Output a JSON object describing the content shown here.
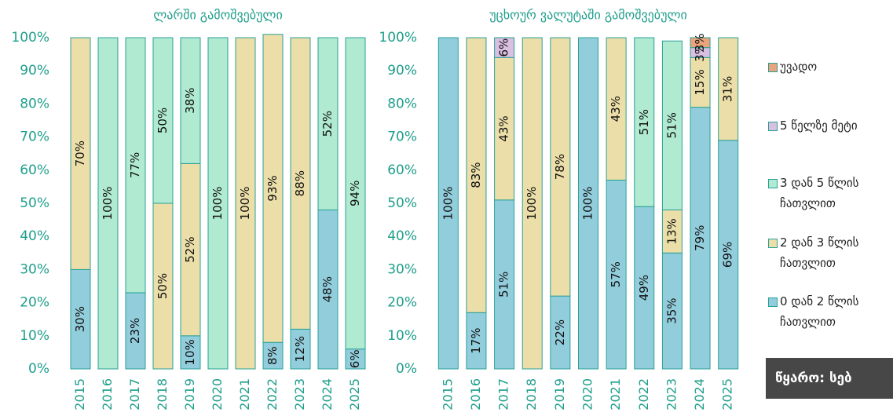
{
  "chart_data": [
    {
      "type": "stacked-bar",
      "title": "ლარში გამოშვებული",
      "categories": [
        "2015",
        "2016",
        "2017",
        "2018",
        "2019",
        "2020",
        "2021",
        "2022",
        "2023",
        "2024",
        "2025"
      ],
      "ylim": [
        0,
        100
      ],
      "yticks": [
        {
          "value": 0,
          "label": "0%"
        },
        {
          "value": 10,
          "label": "10%"
        },
        {
          "value": 20,
          "label": "20%"
        },
        {
          "value": 30,
          "label": "30%"
        },
        {
          "value": 40,
          "label": "40%"
        },
        {
          "value": 50,
          "label": "50%"
        },
        {
          "value": 60,
          "label": "60%"
        },
        {
          "value": 70,
          "label": "70%"
        },
        {
          "value": 80,
          "label": "80%"
        },
        {
          "value": 90,
          "label": "90%"
        },
        {
          "value": 100,
          "label": "100%"
        }
      ],
      "series": [
        {
          "name": "0 დან 2 წლის ჩათვლით",
          "color": "#92cddc",
          "values": [
            30,
            null,
            23,
            null,
            10,
            null,
            null,
            8,
            12,
            48,
            6
          ],
          "value_labels": [
            "30%",
            null,
            "23%",
            null,
            "10%",
            null,
            null,
            "8%",
            "12%",
            "48%",
            "6%"
          ]
        },
        {
          "name": "2 დან 3 წლის ჩათვლით",
          "color": "#ebdea8",
          "values": [
            70,
            null,
            null,
            50,
            52,
            null,
            100,
            93,
            88,
            null,
            null
          ],
          "value_labels": [
            "70%",
            null,
            null,
            "50%",
            "52%",
            null,
            "100%",
            "93%",
            "88%",
            null,
            null
          ]
        },
        {
          "name": "3 დან 5 წლის ჩათვლით",
          "color": "#b0ead0",
          "values": [
            null,
            100,
            77,
            50,
            38,
            100,
            null,
            null,
            null,
            52,
            94
          ],
          "value_labels": [
            null,
            "100%",
            "77%",
            "50%",
            "38%",
            "100%",
            null,
            null,
            null,
            "52%",
            "94%"
          ]
        },
        {
          "name": "5 წელზე მეტი",
          "color": "#d9bfe0",
          "values": [
            null,
            null,
            null,
            null,
            null,
            null,
            null,
            null,
            null,
            null,
            null
          ],
          "value_labels": [
            null,
            null,
            null,
            null,
            null,
            null,
            null,
            null,
            null,
            null,
            null
          ]
        },
        {
          "name": "უვადო",
          "color": "#e9a47c",
          "values": [
            null,
            null,
            null,
            null,
            null,
            null,
            null,
            null,
            null,
            null,
            null
          ],
          "value_labels": [
            null,
            null,
            null,
            null,
            null,
            null,
            null,
            null,
            null,
            null,
            null
          ]
        }
      ]
    },
    {
      "type": "stacked-bar",
      "title": "უცხოურ ვალუტაში გამოშვებული",
      "categories": [
        "2015",
        "2016",
        "2017",
        "2018",
        "2019",
        "2020",
        "2021",
        "2022",
        "2023",
        "2024",
        "2025"
      ],
      "ylim": [
        0,
        100
      ],
      "yticks": [
        {
          "value": 0,
          "label": "0%"
        },
        {
          "value": 10,
          "label": "10%"
        },
        {
          "value": 20,
          "label": "20%"
        },
        {
          "value": 30,
          "label": "30%"
        },
        {
          "value": 40,
          "label": "40%"
        },
        {
          "value": 50,
          "label": "50%"
        },
        {
          "value": 60,
          "label": "60%"
        },
        {
          "value": 70,
          "label": "70%"
        },
        {
          "value": 80,
          "label": "80%"
        },
        {
          "value": 90,
          "label": "90%"
        },
        {
          "value": 100,
          "label": "100%"
        }
      ],
      "series": [
        {
          "values": [
            100,
            17,
            51,
            null,
            22,
            100,
            57,
            49,
            35,
            79,
            69
          ],
          "value_labels": [
            "100%",
            "17%",
            "51%",
            null,
            "22%",
            "100%",
            "57%",
            "49%",
            "35%",
            "79%",
            "69%"
          ]
        },
        {
          "values": [
            null,
            83,
            43,
            100,
            78,
            null,
            43,
            null,
            13,
            15,
            31
          ],
          "value_labels": [
            null,
            "83%",
            "43%",
            "100%",
            "78%",
            null,
            "43%",
            null,
            "13%",
            "15%",
            "31%"
          ]
        },
        {
          "values": [
            null,
            null,
            null,
            null,
            null,
            null,
            null,
            51,
            51,
            null,
            null
          ],
          "value_labels": [
            null,
            null,
            null,
            null,
            null,
            null,
            null,
            "51%",
            "51%",
            null,
            null
          ]
        },
        {
          "values": [
            null,
            null,
            6,
            null,
            null,
            null,
            null,
            null,
            null,
            3,
            null
          ],
          "value_labels": [
            null,
            null,
            "6%",
            null,
            null,
            null,
            null,
            null,
            null,
            "3%",
            null
          ]
        },
        {
          "values": [
            null,
            null,
            null,
            null,
            null,
            null,
            null,
            null,
            null,
            3,
            null
          ],
          "value_labels": [
            null,
            null,
            null,
            null,
            null,
            null,
            null,
            null,
            null,
            "3%",
            null
          ]
        }
      ]
    }
  ],
  "source": "წყარო: სებ"
}
